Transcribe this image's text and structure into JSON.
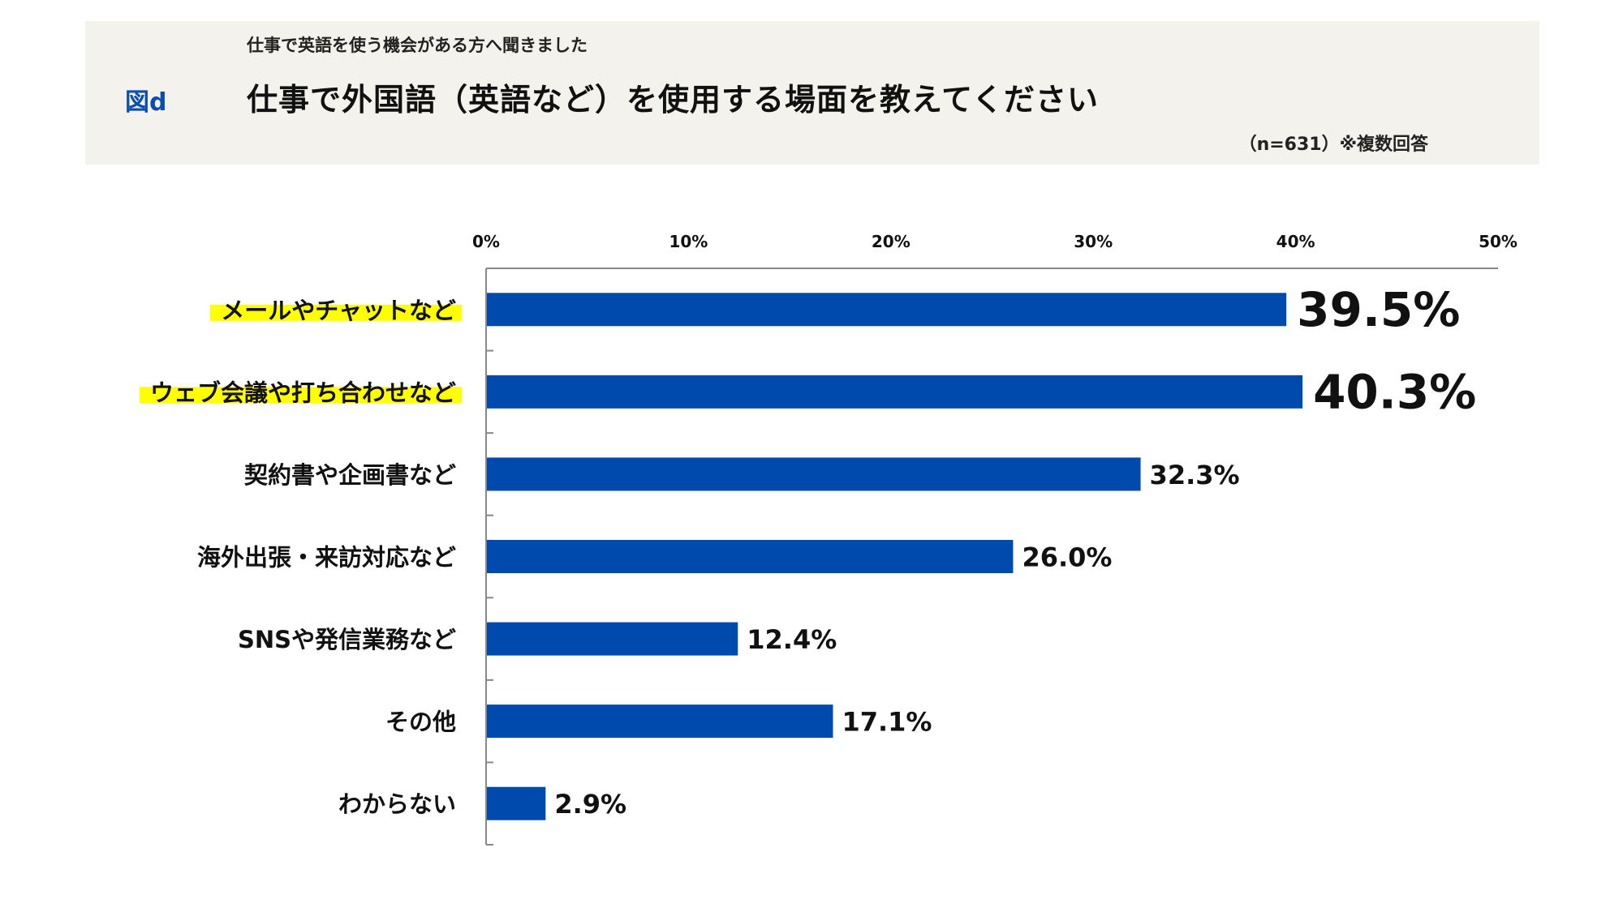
{
  "header": {
    "figure_label": "図d",
    "subtitle": "仕事で英語を使う機会がある方へ聞きました",
    "title": "仕事で外国語（英語など）を使用する場面を教えてください",
    "note": "（n=631）※複数回答"
  },
  "chart_data": {
    "type": "bar",
    "orientation": "horizontal",
    "categories": [
      "メールやチャットなど",
      "ウェブ会議や打ち合わせなど",
      "契約書や企画書など",
      "海外出張・来訪対応など",
      "SNSや発信業務など",
      "その他",
      "わからない"
    ],
    "values": [
      39.5,
      40.3,
      32.3,
      26.0,
      12.4,
      17.1,
      2.9
    ],
    "value_labels": [
      "39.5%",
      "40.3%",
      "32.3%",
      "26.0%",
      "12.4%",
      "17.1%",
      "2.9%"
    ],
    "highlighted": [
      true,
      true,
      false,
      false,
      false,
      false,
      false
    ],
    "xlim": [
      0,
      50
    ],
    "xticks": [
      "0%",
      "10%",
      "20%",
      "30%",
      "40%",
      "50%"
    ],
    "tick_values": [
      0,
      10,
      20,
      30,
      40,
      50
    ],
    "axis_position": "top",
    "grid": false,
    "bar_color": "#004aad",
    "highlight_color": "#ffff00",
    "title": "",
    "xlabel": "",
    "ylabel": ""
  }
}
